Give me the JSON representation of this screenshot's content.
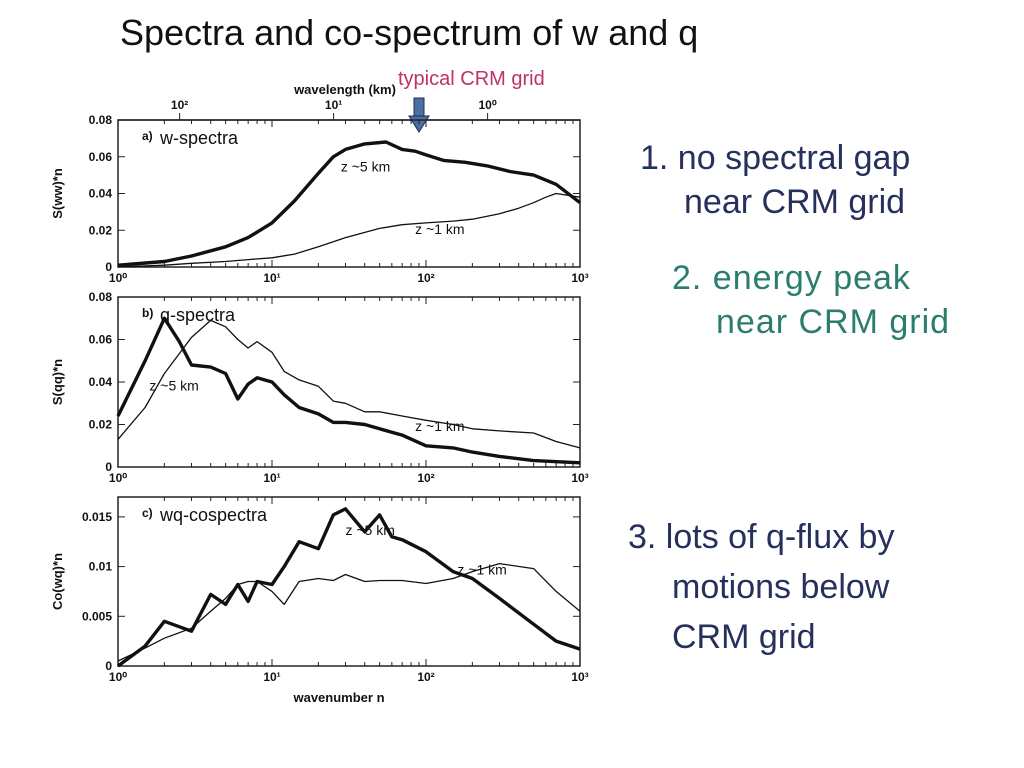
{
  "slide": {
    "title": "Spectra and co-spectrum of w and q",
    "crm_label": "typical CRM grid",
    "notes": [
      {
        "line1": "1. no spectral gap",
        "line2": "near CRM grid"
      },
      {
        "line1": "2. energy peak",
        "line2": "near CRM grid"
      },
      {
        "line1": "3. lots of q-flux by",
        "line2": "motions below",
        "line3": "CRM grid"
      }
    ]
  },
  "colors": {
    "crm_label": "#c0306b",
    "arrow": "#4a6fa3",
    "note_navy": "#26305c",
    "note_teal": "#2b7d6e"
  },
  "top_axis": {
    "label": "wavelength (km)",
    "ticks": [
      "10²",
      "10¹",
      "10⁰"
    ]
  },
  "chart_data": [
    {
      "type": "line",
      "title": "",
      "panel_label": "a)",
      "panel_title": "w-spectra",
      "xlabel": "",
      "ylabel": "S(ww)*n",
      "xscale": "log",
      "xlim": [
        1,
        1000
      ],
      "ylim": [
        0,
        0.08
      ],
      "xticks": [
        "10⁰",
        "10¹",
        "10²",
        "10³"
      ],
      "yticks": [
        "0",
        "0.02",
        "0.04",
        "0.06",
        "0.08"
      ],
      "series": [
        {
          "name": "z ~5 km",
          "style": "thick",
          "x": [
            1,
            2,
            3,
            5,
            7,
            10,
            14,
            20,
            25,
            30,
            40,
            55,
            70,
            85,
            100,
            130,
            180,
            250,
            350,
            500,
            700,
            1000
          ],
          "y": [
            0.001,
            0.003,
            0.006,
            0.011,
            0.016,
            0.024,
            0.036,
            0.051,
            0.06,
            0.064,
            0.067,
            0.068,
            0.064,
            0.063,
            0.061,
            0.058,
            0.057,
            0.055,
            0.052,
            0.05,
            0.045,
            0.035
          ]
        },
        {
          "name": "z ~1 km",
          "style": "thin",
          "x": [
            1,
            2,
            3,
            5,
            7,
            10,
            14,
            20,
            30,
            50,
            70,
            100,
            150,
            200,
            300,
            400,
            500,
            600,
            700,
            1000
          ],
          "y": [
            0.0,
            0.001,
            0.002,
            0.003,
            0.004,
            0.005,
            0.007,
            0.011,
            0.016,
            0.021,
            0.023,
            0.024,
            0.025,
            0.026,
            0.029,
            0.032,
            0.035,
            0.038,
            0.04,
            0.038
          ]
        }
      ],
      "annotations": [
        {
          "text": "z ~5 km",
          "x": 28,
          "y": 0.052
        },
        {
          "text": "z ~1 km",
          "x": 85,
          "y": 0.018
        }
      ]
    },
    {
      "type": "line",
      "title": "",
      "panel_label": "b)",
      "panel_title": "q-spectra",
      "xlabel": "",
      "ylabel": "S(qq)*n",
      "xscale": "log",
      "xlim": [
        1,
        1000
      ],
      "ylim": [
        0,
        0.08
      ],
      "xticks": [
        "10⁰",
        "10¹",
        "10²",
        "10³"
      ],
      "yticks": [
        "0",
        "0.02",
        "0.04",
        "0.06",
        "0.08"
      ],
      "series": [
        {
          "name": "z ~5 km",
          "style": "thick",
          "x": [
            1,
            1.5,
            2,
            2.5,
            3,
            4,
            5,
            6,
            7,
            8,
            10,
            12,
            15,
            20,
            25,
            30,
            40,
            50,
            70,
            100,
            150,
            200,
            300,
            500,
            1000
          ],
          "y": [
            0.024,
            0.05,
            0.07,
            0.059,
            0.048,
            0.047,
            0.044,
            0.032,
            0.039,
            0.042,
            0.04,
            0.034,
            0.028,
            0.025,
            0.021,
            0.021,
            0.02,
            0.018,
            0.015,
            0.01,
            0.009,
            0.007,
            0.005,
            0.003,
            0.002
          ]
        },
        {
          "name": "z ~1 km",
          "style": "thin",
          "x": [
            1,
            1.5,
            2,
            3,
            4,
            5,
            6,
            7,
            8,
            10,
            12,
            15,
            20,
            25,
            30,
            40,
            50,
            70,
            100,
            150,
            200,
            300,
            500,
            700,
            1000
          ],
          "y": [
            0.013,
            0.028,
            0.044,
            0.061,
            0.069,
            0.066,
            0.06,
            0.056,
            0.059,
            0.054,
            0.045,
            0.041,
            0.038,
            0.031,
            0.03,
            0.026,
            0.026,
            0.024,
            0.022,
            0.02,
            0.018,
            0.017,
            0.016,
            0.012,
            0.009
          ]
        }
      ],
      "annotations": [
        {
          "text": "z ~5 km",
          "x": 1.6,
          "y": 0.036
        },
        {
          "text": "z ~1 km",
          "x": 85,
          "y": 0.017
        }
      ]
    },
    {
      "type": "line",
      "title": "",
      "panel_label": "c)",
      "panel_title": "wq-cospectra",
      "xlabel": "wavenumber n",
      "ylabel": "Co(wq)*n",
      "xscale": "log",
      "xlim": [
        1,
        1000
      ],
      "ylim": [
        0,
        0.017
      ],
      "xticks": [
        "10⁰",
        "10¹",
        "10²",
        "10³"
      ],
      "yticks": [
        "0",
        "0.005",
        "0.01",
        "0.015"
      ],
      "series": [
        {
          "name": "z ~5 km",
          "style": "thick",
          "x": [
            1,
            1.5,
            2,
            3,
            4,
            5,
            6,
            7,
            8,
            10,
            12,
            15,
            20,
            25,
            30,
            40,
            50,
            60,
            70,
            100,
            150,
            200,
            300,
            500,
            700,
            1000
          ],
          "y": [
            0.0,
            0.002,
            0.0045,
            0.0035,
            0.0072,
            0.0062,
            0.0082,
            0.0065,
            0.0085,
            0.0082,
            0.01,
            0.0125,
            0.0118,
            0.0152,
            0.0158,
            0.0135,
            0.0152,
            0.013,
            0.0127,
            0.0115,
            0.0095,
            0.0088,
            0.0068,
            0.0042,
            0.0025,
            0.0017
          ]
        },
        {
          "name": "z ~1 km",
          "style": "thin",
          "x": [
            1,
            1.5,
            2,
            3,
            4,
            5,
            6,
            7,
            8,
            10,
            12,
            15,
            20,
            25,
            30,
            40,
            50,
            70,
            100,
            150,
            200,
            300,
            500,
            700,
            1000
          ],
          "y": [
            0.0005,
            0.0018,
            0.0028,
            0.0038,
            0.0055,
            0.0068,
            0.0082,
            0.0085,
            0.0085,
            0.0075,
            0.0062,
            0.0085,
            0.0088,
            0.0086,
            0.0092,
            0.0085,
            0.0086,
            0.0086,
            0.0083,
            0.0088,
            0.0095,
            0.0103,
            0.0098,
            0.0075,
            0.0055
          ]
        }
      ],
      "annotations": [
        {
          "text": "z ~5 km",
          "x": 30,
          "y": 0.0132
        },
        {
          "text": "z ~1 km",
          "x": 160,
          "y": 0.0092
        }
      ]
    }
  ]
}
